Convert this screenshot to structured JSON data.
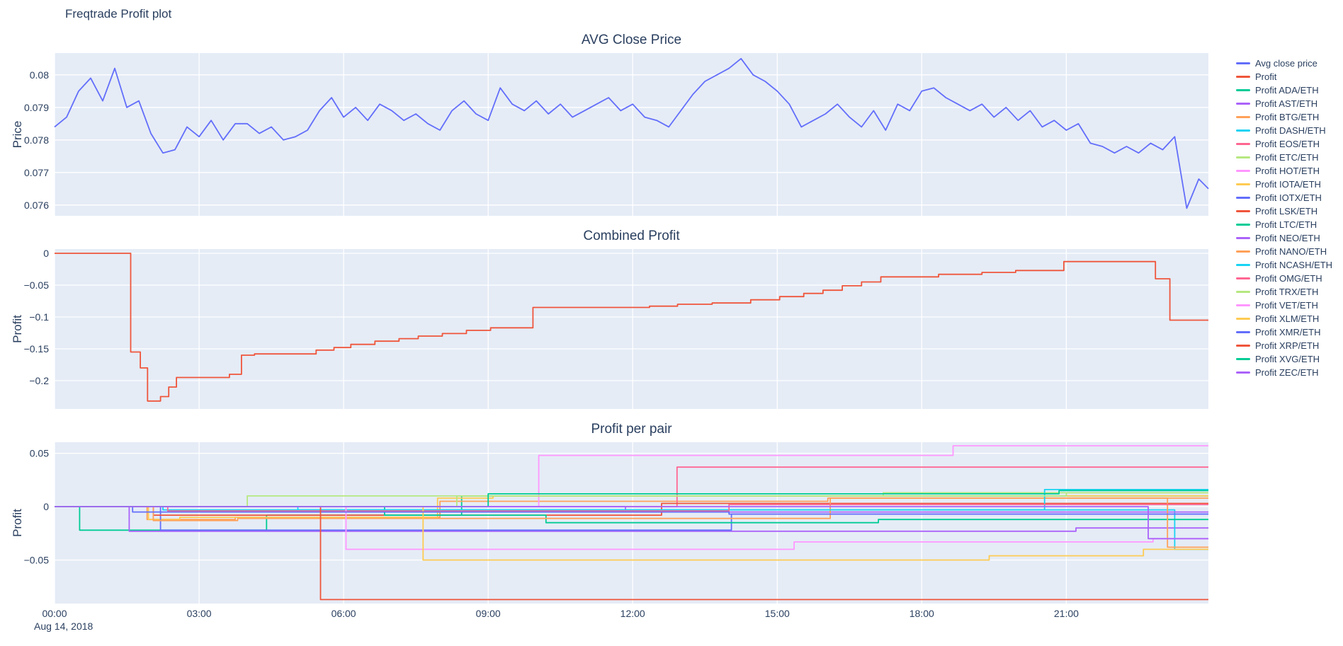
{
  "page": {
    "title": "Freqtrade Profit plot"
  },
  "colors": {
    "background": "#ffffff",
    "plot_bg": "#e5ecf6",
    "grid": "#ffffff",
    "text": "#2a3f5f",
    "accent_blue": "#636efa",
    "accent_red": "#EF553B"
  },
  "x_axis": {
    "xlim": [
      0,
      23.95
    ],
    "xticks": [
      {
        "t": 0,
        "label": "00:00"
      },
      {
        "t": 3,
        "label": "03:00"
      },
      {
        "t": 6,
        "label": "06:00"
      },
      {
        "t": 9,
        "label": "09:00"
      },
      {
        "t": 12,
        "label": "12:00"
      },
      {
        "t": 15,
        "label": "15:00"
      },
      {
        "t": 18,
        "label": "18:00"
      },
      {
        "t": 21,
        "label": "21:00"
      }
    ],
    "date_label": "Aug 14, 2018"
  },
  "legend": {
    "items": [
      {
        "label": "Avg close price",
        "color": "#636efa"
      },
      {
        "label": "Profit",
        "color": "#EF553B"
      },
      {
        "label": "Profit ADA/ETH",
        "color": "#00cc96"
      },
      {
        "label": "Profit AST/ETH",
        "color": "#ab63fa"
      },
      {
        "label": "Profit BTG/ETH",
        "color": "#FFA15A"
      },
      {
        "label": "Profit DASH/ETH",
        "color": "#19d3f3"
      },
      {
        "label": "Profit EOS/ETH",
        "color": "#FF6692"
      },
      {
        "label": "Profit ETC/ETH",
        "color": "#B6E880"
      },
      {
        "label": "Profit HOT/ETH",
        "color": "#FF97FF"
      },
      {
        "label": "Profit IOTA/ETH",
        "color": "#FECB52"
      },
      {
        "label": "Profit IOTX/ETH",
        "color": "#636efa"
      },
      {
        "label": "Profit LSK/ETH",
        "color": "#EF553B"
      },
      {
        "label": "Profit LTC/ETH",
        "color": "#00cc96"
      },
      {
        "label": "Profit NEO/ETH",
        "color": "#ab63fa"
      },
      {
        "label": "Profit NANO/ETH",
        "color": "#FFA15A"
      },
      {
        "label": "Profit NCASH/ETH",
        "color": "#19d3f3"
      },
      {
        "label": "Profit OMG/ETH",
        "color": "#FF6692"
      },
      {
        "label": "Profit TRX/ETH",
        "color": "#B6E880"
      },
      {
        "label": "Profit VET/ETH",
        "color": "#FF97FF"
      },
      {
        "label": "Profit XLM/ETH",
        "color": "#FECB52"
      },
      {
        "label": "Profit XMR/ETH",
        "color": "#636efa"
      },
      {
        "label": "Profit XRP/ETH",
        "color": "#EF553B"
      },
      {
        "label": "Profit XVG/ETH",
        "color": "#00cc96"
      },
      {
        "label": "Profit ZEC/ETH",
        "color": "#ab63fa"
      }
    ]
  },
  "chart_data": [
    {
      "type": "line",
      "title": "AVG Close Price",
      "ylabel": "Price",
      "series_name": "Avg close price",
      "color": "#636efa",
      "x_start": 0,
      "x_step": 0.25,
      "values": [
        0.0784,
        0.0787,
        0.0795,
        0.0799,
        0.0792,
        0.0802,
        0.079,
        0.0792,
        0.0782,
        0.0776,
        0.0777,
        0.0784,
        0.0781,
        0.0786,
        0.078,
        0.0785,
        0.0785,
        0.0782,
        0.0784,
        0.078,
        0.0781,
        0.0783,
        0.0789,
        0.0793,
        0.0787,
        0.079,
        0.0786,
        0.0791,
        0.0789,
        0.0786,
        0.0788,
        0.0785,
        0.0783,
        0.0789,
        0.0792,
        0.0788,
        0.0786,
        0.0796,
        0.0791,
        0.0789,
        0.0792,
        0.0788,
        0.0791,
        0.0787,
        0.0789,
        0.0791,
        0.0793,
        0.0789,
        0.0791,
        0.0787,
        0.0786,
        0.0784,
        0.0789,
        0.0794,
        0.0798,
        0.08,
        0.0802,
        0.0805,
        0.08,
        0.0798,
        0.0795,
        0.0791,
        0.0784,
        0.0786,
        0.0788,
        0.0791,
        0.0787,
        0.0784,
        0.0789,
        0.0783,
        0.0791,
        0.0789,
        0.0795,
        0.0796,
        0.0793,
        0.0791,
        0.0789,
        0.0791,
        0.0787,
        0.079,
        0.0786,
        0.0789,
        0.0784,
        0.0786,
        0.0783,
        0.0785,
        0.0779,
        0.0778,
        0.0776,
        0.0778,
        0.0776,
        0.0779,
        0.0777,
        0.0781,
        0.0759,
        0.0768,
        0.0765
      ],
      "ylim": [
        0.07567,
        0.08067
      ],
      "yticks": [
        {
          "v": 0.076,
          "label": "0.076"
        },
        {
          "v": 0.077,
          "label": "0.077"
        },
        {
          "v": 0.078,
          "label": "0.078"
        },
        {
          "v": 0.079,
          "label": "0.079"
        },
        {
          "v": 0.08,
          "label": "0.08"
        }
      ]
    },
    {
      "type": "step",
      "title": "Combined Profit",
      "ylabel": "Profit",
      "ylim": [
        -0.2444,
        0.00667
      ],
      "yticks": [
        {
          "v": 0,
          "label": "0"
        },
        {
          "v": -0.05,
          "label": "−0.05"
        },
        {
          "v": -0.1,
          "label": "−0.1"
        },
        {
          "v": -0.15,
          "label": "−0.15"
        },
        {
          "v": -0.2,
          "label": "−0.2"
        }
      ],
      "series": [
        {
          "name": "Profit",
          "color": "#EF553B",
          "steps": [
            [
              0,
              0
            ],
            [
              1.58,
              -0.155
            ],
            [
              1.78,
              -0.18
            ],
            [
              1.93,
              -0.232
            ],
            [
              2.2,
              -0.225
            ],
            [
              2.37,
              -0.21
            ],
            [
              2.53,
              -0.195
            ],
            [
              3.63,
              -0.19
            ],
            [
              3.88,
              -0.16
            ],
            [
              4.15,
              -0.158
            ],
            [
              5.43,
              -0.152
            ],
            [
              5.8,
              -0.148
            ],
            [
              6.15,
              -0.143
            ],
            [
              6.65,
              -0.138
            ],
            [
              7.15,
              -0.134
            ],
            [
              7.55,
              -0.13
            ],
            [
              8.05,
              -0.126
            ],
            [
              8.55,
              -0.121
            ],
            [
              9.05,
              -0.117
            ],
            [
              9.93,
              -0.085
            ],
            [
              12.35,
              -0.083
            ],
            [
              12.93,
              -0.08
            ],
            [
              13.65,
              -0.078
            ],
            [
              14.45,
              -0.073
            ],
            [
              15.05,
              -0.068
            ],
            [
              15.55,
              -0.063
            ],
            [
              15.95,
              -0.058
            ],
            [
              16.35,
              -0.051
            ],
            [
              16.75,
              -0.045
            ],
            [
              17.15,
              -0.037
            ],
            [
              18.35,
              -0.033
            ],
            [
              19.25,
              -0.03
            ],
            [
              19.95,
              -0.027
            ],
            [
              20.95,
              -0.013
            ],
            [
              22.85,
              -0.04
            ],
            [
              23.15,
              -0.105
            ]
          ]
        }
      ]
    },
    {
      "type": "step",
      "title": "Profit per pair",
      "ylabel": "Profit",
      "ylim": [
        -0.0907,
        0.0603
      ],
      "yticks": [
        {
          "v": 0.05,
          "label": "0.05"
        },
        {
          "v": 0,
          "label": "0"
        },
        {
          "v": -0.05,
          "label": "−0.05"
        }
      ],
      "series": [
        {
          "name": "Profit ADA/ETH",
          "color": "#00cc96",
          "steps": [
            [
              0,
              0
            ],
            [
              0.52,
              -0.022
            ],
            [
              4.4,
              -0.008
            ],
            [
              8.45,
              0.01
            ]
          ]
        },
        {
          "name": "Profit AST/ETH",
          "color": "#ab63fa",
          "steps": [
            [
              0,
              0
            ],
            [
              1.55,
              -0.023
            ],
            [
              21.2,
              -0.02
            ]
          ]
        },
        {
          "name": "Profit BTG/ETH",
          "color": "#FFA15A",
          "steps": [
            [
              0,
              0
            ],
            [
              1.92,
              -0.012
            ],
            [
              3.75,
              -0.01
            ],
            [
              8.0,
              0.005
            ],
            [
              16.05,
              0.008
            ]
          ]
        },
        {
          "name": "Profit DASH/ETH",
          "color": "#19d3f3",
          "steps": [
            [
              0,
              0
            ],
            [
              2.25,
              -0.003
            ],
            [
              23.25,
              -0.04
            ]
          ]
        },
        {
          "name": "Profit EOS/ETH",
          "color": "#FF6692",
          "steps": [
            [
              0,
              0
            ],
            [
              12.92,
              0.037
            ]
          ]
        },
        {
          "name": "Profit ETC/ETH",
          "color": "#B6E880",
          "steps": [
            [
              0,
              0
            ],
            [
              4.0,
              0.01
            ],
            [
              17.2,
              0.013
            ]
          ]
        },
        {
          "name": "Profit HOT/ETH",
          "color": "#FF97FF",
          "steps": [
            [
              0,
              0
            ],
            [
              10.05,
              0.048
            ],
            [
              18.65,
              0.057
            ]
          ]
        },
        {
          "name": "Profit IOTA/ETH",
          "color": "#FECB52",
          "steps": [
            [
              0,
              0
            ],
            [
              1.95,
              -0.012
            ],
            [
              2.6,
              -0.01
            ],
            [
              7.95,
              0.008
            ],
            [
              9.1,
              0.01
            ]
          ]
        },
        {
          "name": "Profit IOTX/ETH",
          "color": "#636efa",
          "steps": [
            [
              0,
              0
            ],
            [
              2.2,
              -0.022
            ],
            [
              14.05,
              -0.007
            ]
          ]
        },
        {
          "name": "Profit LSK/ETH",
          "color": "#EF553B",
          "steps": [
            [
              0,
              0
            ],
            [
              2.05,
              -0.008
            ],
            [
              12.6,
              0.003
            ]
          ]
        },
        {
          "name": "Profit LTC/ETH",
          "color": "#00cc96",
          "steps": [
            [
              0,
              0
            ],
            [
              6.85,
              -0.008
            ],
            [
              10.2,
              -0.015
            ],
            [
              17.1,
              -0.012
            ]
          ]
        },
        {
          "name": "Profit NEO/ETH",
          "color": "#ab63fa",
          "steps": [
            [
              0,
              0
            ],
            [
              11.85,
              -0.005
            ]
          ]
        },
        {
          "name": "Profit NANO/ETH",
          "color": "#FFA15A",
          "steps": [
            [
              0,
              0
            ],
            [
              2.05,
              -0.013
            ],
            [
              3.8,
              -0.011
            ],
            [
              16.1,
              0.008
            ],
            [
              23.1,
              -0.038
            ]
          ]
        },
        {
          "name": "Profit NCASH/ETH",
          "color": "#19d3f3",
          "steps": [
            [
              0,
              0
            ],
            [
              5.05,
              -0.003
            ],
            [
              20.55,
              0.016
            ]
          ]
        },
        {
          "name": "Profit OMG/ETH",
          "color": "#FF6692",
          "steps": [
            [
              0,
              0
            ],
            [
              2.35,
              -0.004
            ],
            [
              14.0,
              0.002
            ]
          ]
        },
        {
          "name": "Profit TRX/ETH",
          "color": "#B6E880",
          "steps": [
            [
              0,
              0
            ],
            [
              8.35,
              0.01
            ],
            [
              21.0,
              0.013
            ]
          ]
        },
        {
          "name": "Profit VET/ETH",
          "color": "#FF97FF",
          "steps": [
            [
              0,
              0
            ],
            [
              6.05,
              -0.04
            ],
            [
              15.35,
              -0.033
            ],
            [
              22.8,
              -0.03
            ]
          ]
        },
        {
          "name": "Profit XLM/ETH",
          "color": "#FECB52",
          "steps": [
            [
              0,
              0
            ],
            [
              7.65,
              -0.05
            ],
            [
              19.4,
              -0.046
            ],
            [
              22.6,
              -0.04
            ]
          ]
        },
        {
          "name": "Profit XMR/ETH",
          "color": "#636efa",
          "steps": [
            [
              0,
              0
            ],
            [
              1.62,
              -0.005
            ],
            [
              14.0,
              -0.007
            ]
          ]
        },
        {
          "name": "Profit XRP/ETH",
          "color": "#EF553B",
          "steps": [
            [
              0,
              0
            ],
            [
              5.52,
              -0.087
            ]
          ]
        },
        {
          "name": "Profit XVG/ETH",
          "color": "#00cc96",
          "steps": [
            [
              0,
              0
            ],
            [
              9.0,
              0.012
            ],
            [
              20.85,
              0.015
            ]
          ]
        },
        {
          "name": "Profit ZEC/ETH",
          "color": "#ab63fa",
          "steps": [
            [
              0,
              0
            ],
            [
              22.7,
              -0.03
            ]
          ]
        }
      ]
    }
  ]
}
